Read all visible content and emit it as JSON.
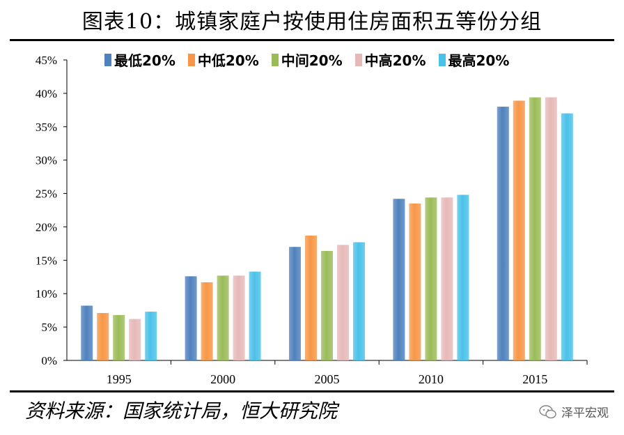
{
  "title": "图表10：城镇家庭户按使用住房面积五等份分组",
  "source": "资料来源：国家统计局，恒大研究院",
  "watermark": "泽平宏观",
  "chart_data": {
    "type": "bar",
    "categories": [
      "1995",
      "2000",
      "2005",
      "2010",
      "2015"
    ],
    "series": [
      {
        "name": "最低20%",
        "color": "#4F81BD",
        "values": [
          8.2,
          12.6,
          17.0,
          24.2,
          38.0
        ]
      },
      {
        "name": "中低20%",
        "color": "#F79646",
        "values": [
          7.1,
          11.7,
          18.7,
          23.5,
          38.9
        ]
      },
      {
        "name": "中间20%",
        "color": "#9BBB59",
        "values": [
          6.8,
          12.7,
          16.4,
          24.4,
          39.4
        ]
      },
      {
        "name": "中高20%",
        "color": "#E6B9B8",
        "values": [
          6.2,
          12.7,
          17.3,
          24.4,
          39.4
        ]
      },
      {
        "name": "最高20%",
        "color": "#4BC1E8",
        "values": [
          7.3,
          13.3,
          17.7,
          24.8,
          37.0
        ]
      }
    ],
    "ylim": [
      0,
      45
    ],
    "yticks": [
      "0%",
      "5%",
      "10%",
      "15%",
      "20%",
      "25%",
      "30%",
      "35%",
      "40%",
      "45%"
    ],
    "grid": false,
    "legend_position": "top"
  }
}
